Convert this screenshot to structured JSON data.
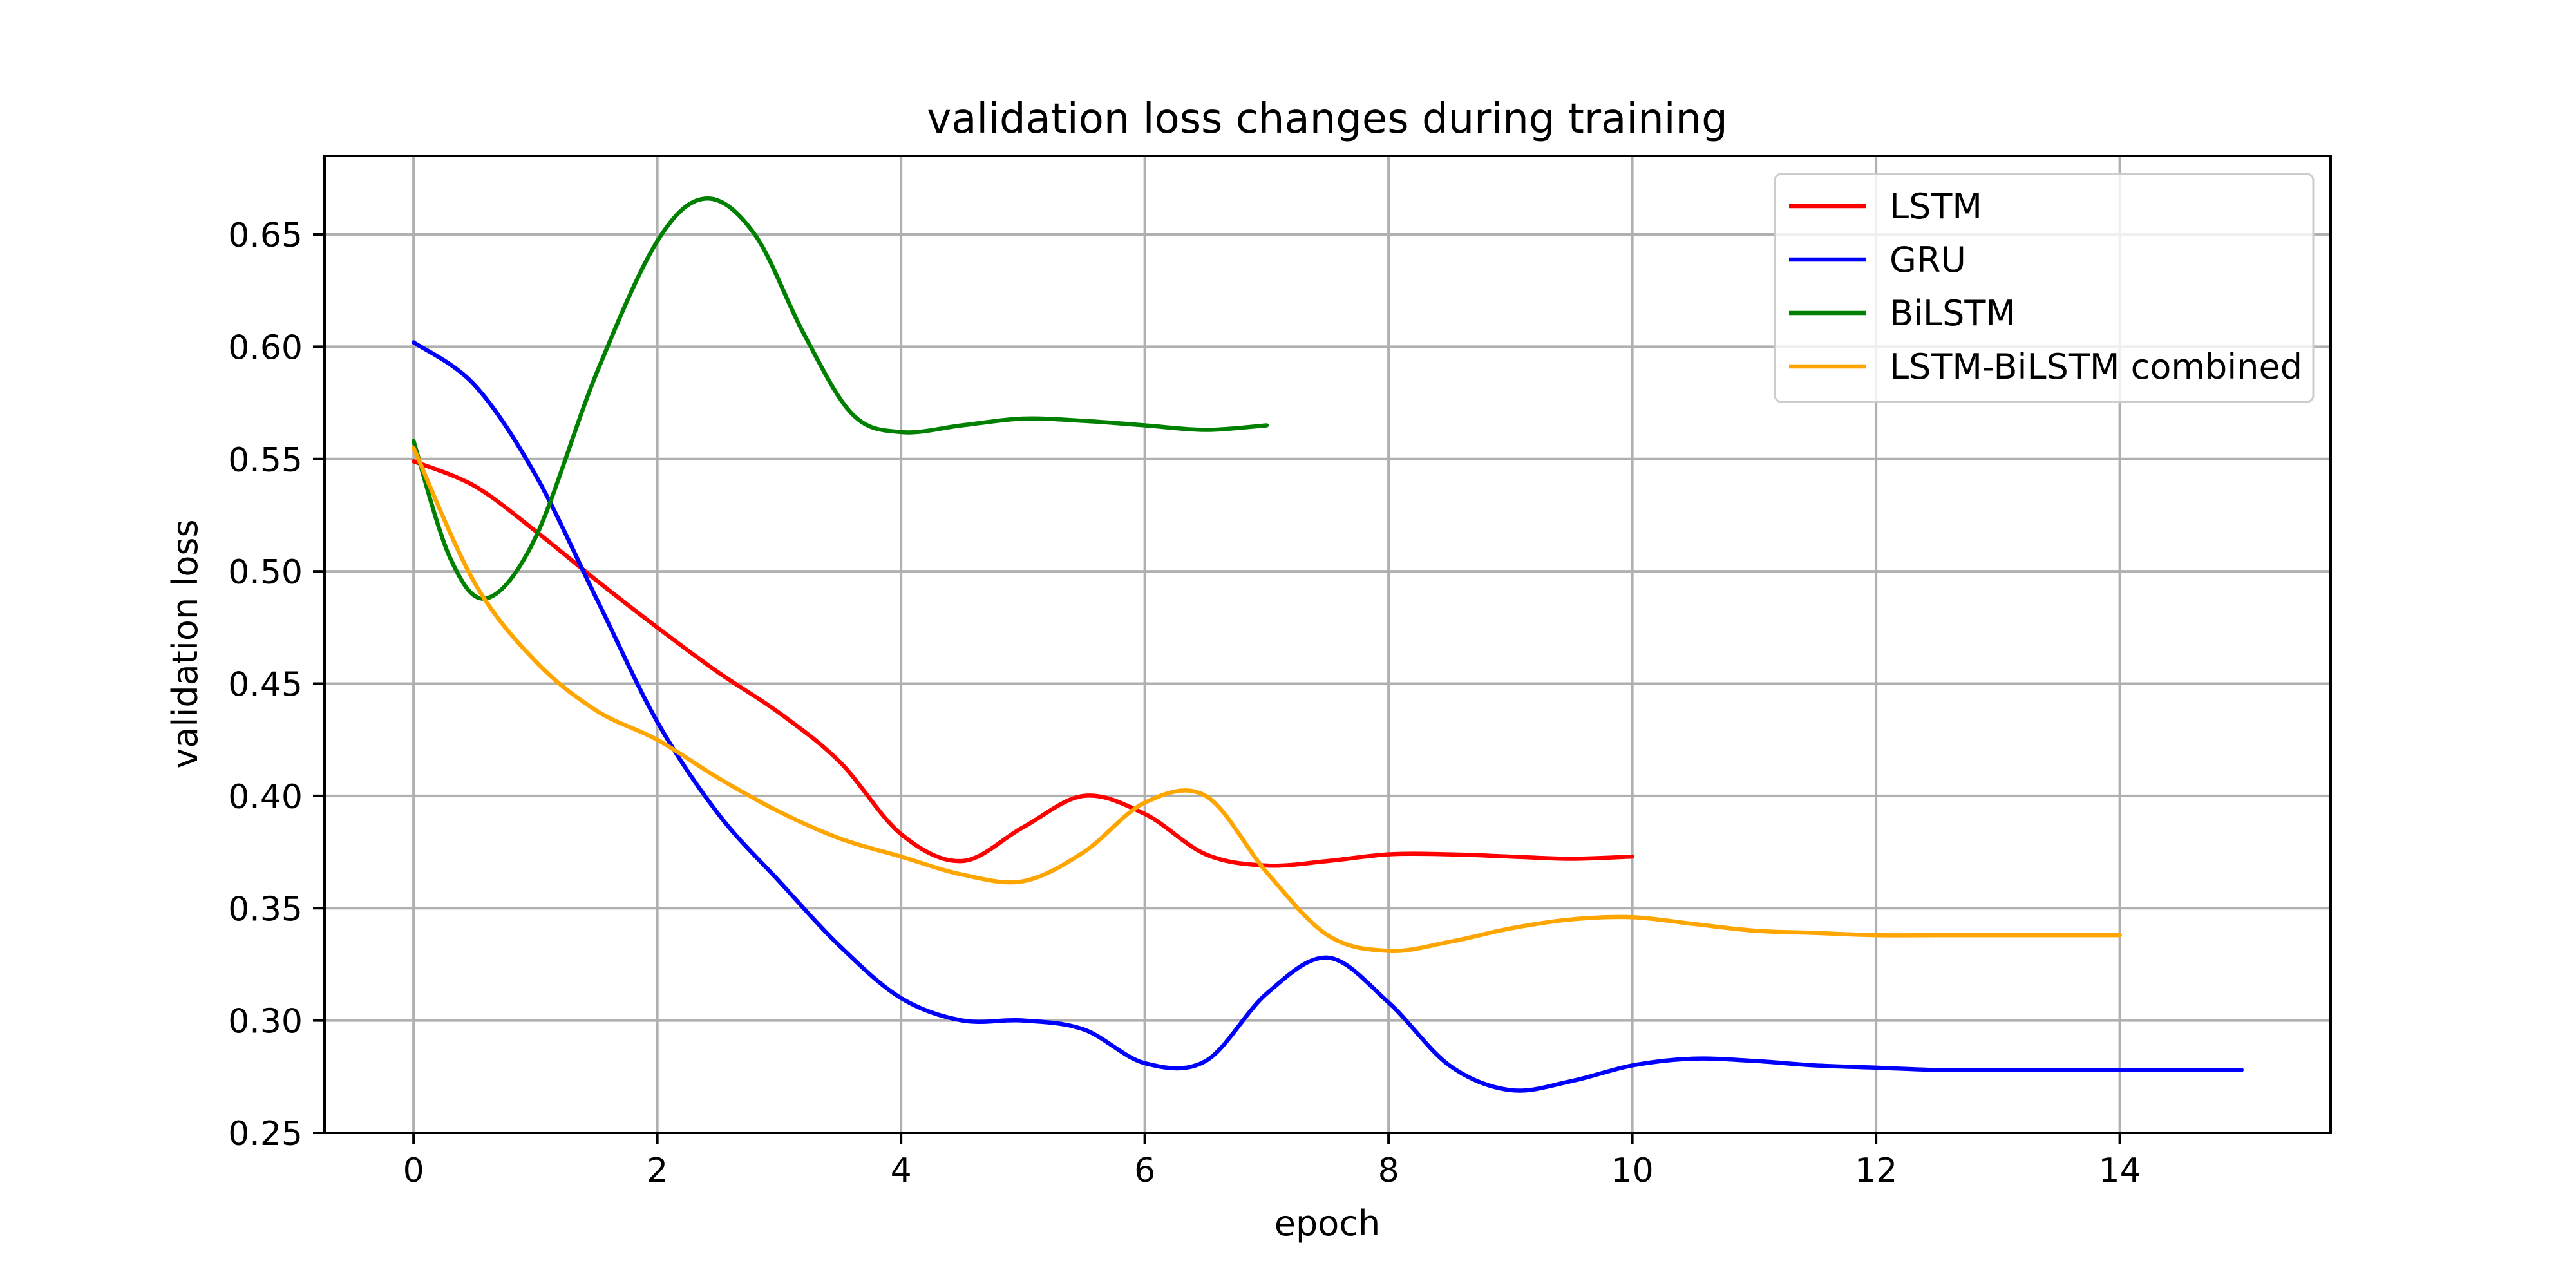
{
  "chart_data": {
    "type": "line",
    "title": "validation loss changes during training",
    "xlabel": "epoch",
    "ylabel": "validation loss",
    "xlim": [
      -0.73,
      15.73
    ],
    "ylim": [
      0.25,
      0.685
    ],
    "xticks": [
      0,
      2,
      4,
      6,
      8,
      10,
      12,
      14
    ],
    "yticks": [
      0.25,
      0.3,
      0.35,
      0.4,
      0.45,
      0.5,
      0.55,
      0.6,
      0.65
    ],
    "grid": true,
    "legend_position": "top-right",
    "series": [
      {
        "name": "LSTM",
        "color": "#ff0000",
        "x": [
          0,
          0.5,
          1,
          1.5,
          2,
          2.5,
          3,
          3.5,
          4,
          4.5,
          5,
          5.5,
          6,
          6.5,
          7,
          7.5,
          8,
          8.5,
          9,
          9.5,
          10
        ],
        "y": [
          0.549,
          0.538,
          0.518,
          0.496,
          0.475,
          0.455,
          0.437,
          0.415,
          0.383,
          0.371,
          0.386,
          0.4,
          0.392,
          0.374,
          0.369,
          0.371,
          0.374,
          0.374,
          0.373,
          0.372,
          0.373
        ]
      },
      {
        "name": "GRU",
        "color": "#0000ff",
        "x": [
          0,
          0.5,
          1,
          1.5,
          2,
          2.5,
          3,
          3.5,
          4,
          4.5,
          5,
          5.5,
          6,
          6.5,
          7,
          7.5,
          8,
          8.5,
          9,
          9.5,
          10,
          10.5,
          11,
          11.5,
          12,
          12.5,
          13,
          13.5,
          14,
          14.5,
          15
        ],
        "y": [
          0.602,
          0.583,
          0.543,
          0.488,
          0.433,
          0.392,
          0.362,
          0.333,
          0.31,
          0.3,
          0.3,
          0.296,
          0.281,
          0.282,
          0.312,
          0.328,
          0.308,
          0.28,
          0.269,
          0.273,
          0.28,
          0.283,
          0.282,
          0.28,
          0.279,
          0.278,
          0.278,
          0.278,
          0.278,
          0.278,
          0.278
        ]
      },
      {
        "name": "BiLSTM",
        "color": "#008000",
        "x": [
          0,
          0.3,
          0.6,
          1,
          1.5,
          2,
          2.4,
          2.8,
          3.2,
          3.6,
          4,
          4.5,
          5,
          5.5,
          6,
          6.5,
          7
        ],
        "y": [
          0.558,
          0.506,
          0.488,
          0.515,
          0.588,
          0.647,
          0.666,
          0.65,
          0.606,
          0.57,
          0.562,
          0.565,
          0.568,
          0.567,
          0.565,
          0.563,
          0.565
        ]
      },
      {
        "name": "LSTM-BiLSTM combined",
        "color": "#ffa500",
        "x": [
          0,
          0.5,
          1,
          1.5,
          2,
          2.5,
          3,
          3.5,
          4,
          4.5,
          5,
          5.5,
          6,
          6.5,
          7,
          7.5,
          8,
          8.5,
          9,
          9.5,
          10,
          10.5,
          11,
          11.5,
          12,
          12.5,
          13,
          13.5,
          14
        ],
        "y": [
          0.555,
          0.495,
          0.46,
          0.438,
          0.425,
          0.408,
          0.393,
          0.381,
          0.373,
          0.365,
          0.362,
          0.375,
          0.397,
          0.4,
          0.366,
          0.338,
          0.331,
          0.335,
          0.341,
          0.345,
          0.346,
          0.343,
          0.34,
          0.339,
          0.338,
          0.338,
          0.338,
          0.338,
          0.338
        ]
      }
    ]
  }
}
